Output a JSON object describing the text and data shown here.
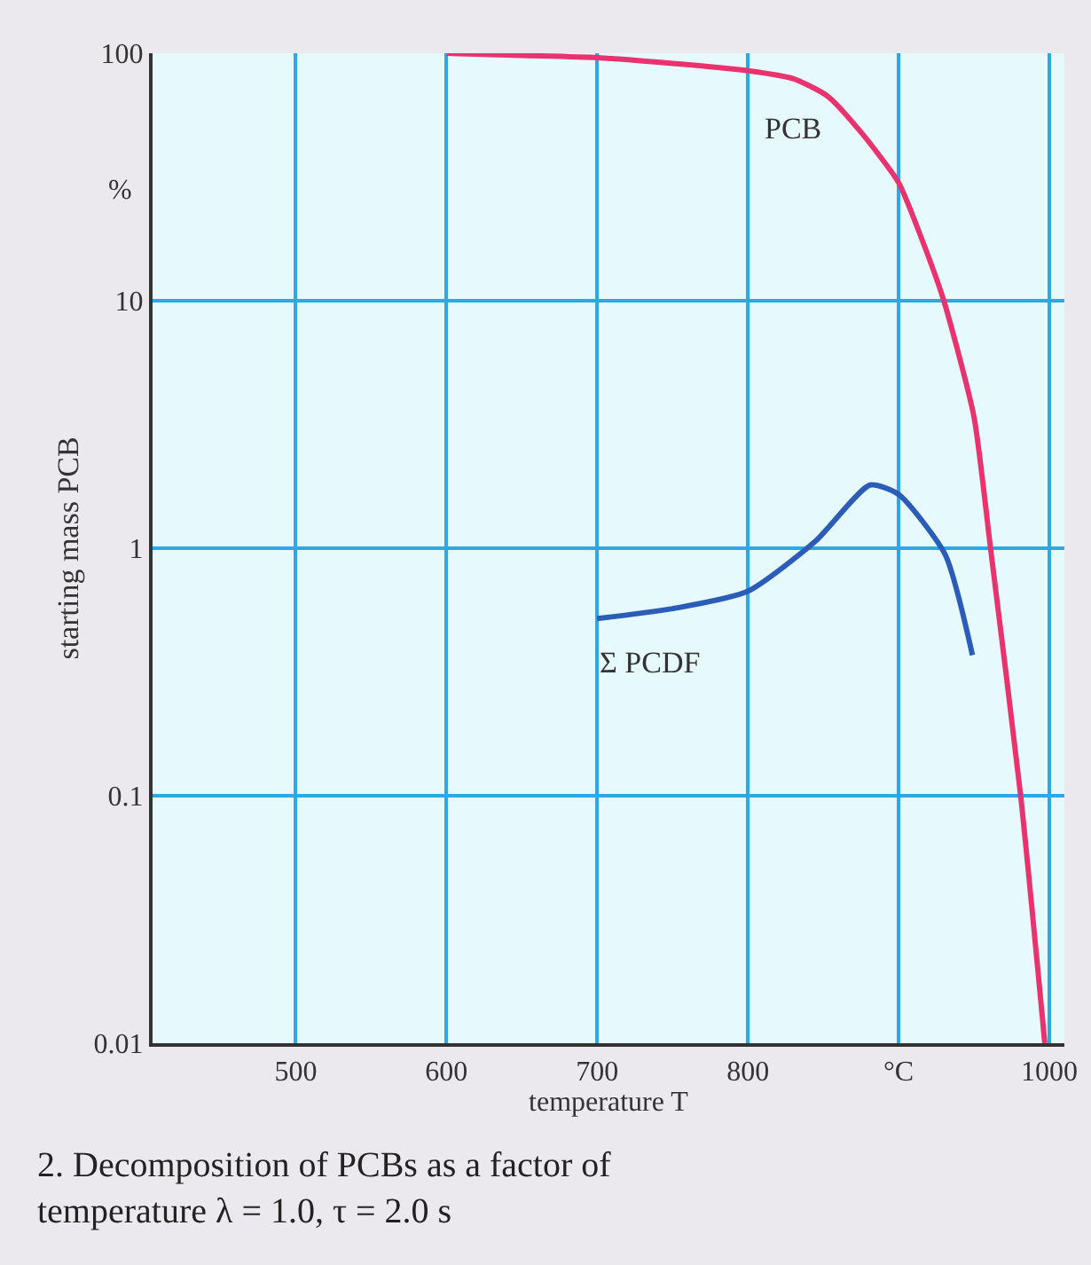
{
  "chart_data": {
    "type": "line",
    "title": "2. Decomposition of PCBs as a factor of temperature λ = 1.0, τ = 2.0 s",
    "xlabel": "temperature T",
    "ylabel": "starting mass PCB",
    "annotations": [
      "%"
    ],
    "log": "y",
    "grid": true,
    "legend": false,
    "marker": "none",
    "line_style": "solid",
    "xlim": [
      405,
      1010
    ],
    "ylim": [
      0.01,
      100
    ],
    "xticks": [
      500,
      600,
      700,
      800,
      {
        "value": 900,
        "label": "°C"
      },
      1000
    ],
    "yticks": [
      0.01,
      0.1,
      1,
      10,
      100
    ],
    "series": [
      {
        "name": "PCB",
        "color": "#e8336e",
        "x": [
          600,
          650,
          700,
          750,
          800,
          830,
          853,
          875,
          900,
          915,
          930,
          950,
          961,
          981,
          997
        ],
        "values": [
          100,
          98,
          96,
          91,
          85,
          79,
          67,
          48,
          30,
          18,
          10,
          3.4,
          1,
          0.1,
          0.01
        ]
      },
      {
        "name": "Σ PCDF",
        "color": "#2a5cb8",
        "x": [
          700,
          750,
          800,
          845,
          881,
          900,
          931,
          949
        ],
        "values": [
          0.52,
          0.57,
          0.67,
          1.07,
          1.8,
          1.65,
          0.94,
          0.37
        ]
      }
    ]
  }
}
